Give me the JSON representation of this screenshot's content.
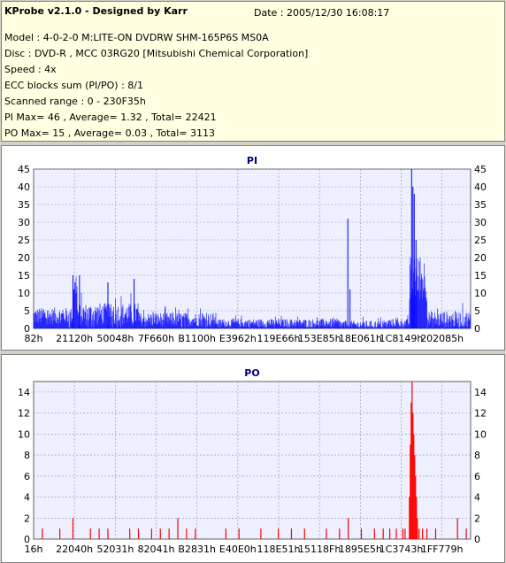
{
  "header": {
    "title": "KProbe v2.1.0 - Designed by Karr",
    "date": "Date : 2005/12/30 16:08:17",
    "model": "Model : 4-0-2-0 M:LITE-ON DVDRW SHM-165P6S MS0A",
    "disc": "Disc : DVD-R , MCC 03RG20  [Mitsubishi Chemical Corporation]",
    "speed": "Speed : 4x",
    "ecc": "ECC blocks sum (PI/PO) : 8/1",
    "range": "Scanned range : 0 - 230F35h",
    "pi_stats": "PI Max= 46 , Average= 1.32 , Total= 22421",
    "po_stats": "PO Max= 15 , Average= 0.03 , Total= 3113"
  },
  "colors": {
    "pi_bar": "#0000ff",
    "po_bar": "#ff0000",
    "plot_bg": "#eef0ff",
    "grid": "#9090a8",
    "info_bg": "#ffffe1",
    "title_text": "#000080"
  },
  "chart_data": [
    {
      "type": "bar",
      "title": "PI",
      "ylim": [
        0,
        45
      ],
      "yticks": [
        0,
        5,
        10,
        15,
        20,
        25,
        30,
        35,
        40,
        45
      ],
      "xticks": [
        "82h",
        "21120h",
        "50048h",
        "7F660h",
        "B1100h",
        "E3962h",
        "119E66h",
        "153E85h",
        "18E061h",
        "1C8149h",
        "202085h"
      ],
      "grid": true,
      "series": [
        {
          "color": "#0000ff",
          "segments": [
            {
              "from": 0.0,
              "to": 0.09,
              "base": 3.5,
              "spread": 3.0
            },
            {
              "from": 0.09,
              "to": 0.1,
              "base": 12.0,
              "spread": 3.0
            },
            {
              "from": 0.1,
              "to": 0.24,
              "base": 4.0,
              "spread": 4.0
            },
            {
              "from": 0.24,
              "to": 0.42,
              "base": 2.5,
              "spread": 2.5
            },
            {
              "from": 0.42,
              "to": 0.7,
              "base": 1.5,
              "spread": 1.5
            },
            {
              "from": 0.7,
              "to": 0.81,
              "base": 1.0,
              "spread": 1.5
            },
            {
              "from": 0.81,
              "to": 0.86,
              "base": 1.5,
              "spread": 1.5
            },
            {
              "from": 0.86,
              "to": 0.9,
              "base": 14.0,
              "spread": 8.0
            },
            {
              "from": 0.9,
              "to": 1.0,
              "base": 2.5,
              "spread": 3.0
            }
          ],
          "peaks": [
            {
              "x": 0.865,
              "value": 46
            },
            {
              "x": 0.868,
              "value": 40
            },
            {
              "x": 0.871,
              "value": 38
            },
            {
              "x": 0.875,
              "value": 25
            },
            {
              "x": 0.719,
              "value": 31
            },
            {
              "x": 0.724,
              "value": 11
            },
            {
              "x": 0.23,
              "value": 14
            },
            {
              "x": 0.17,
              "value": 13
            },
            {
              "x": 0.09,
              "value": 15
            },
            {
              "x": 0.105,
              "value": 15
            }
          ]
        }
      ]
    },
    {
      "type": "bar",
      "title": "PO",
      "ylim": [
        0,
        15
      ],
      "yticks": [
        0,
        2,
        4,
        6,
        8,
        10,
        12,
        14
      ],
      "xticks": [
        "16h",
        "22040h",
        "52031h",
        "82041h",
        "B2831h",
        "E40E0h",
        "118E51h",
        "15118Fh",
        "1895E5h",
        "1C3743h",
        "1FF779h"
      ],
      "grid": true,
      "series": [
        {
          "color": "#ff0000",
          "spikes": [
            {
              "x": 0.02,
              "value": 1
            },
            {
              "x": 0.06,
              "value": 1
            },
            {
              "x": 0.09,
              "value": 2
            },
            {
              "x": 0.13,
              "value": 1
            },
            {
              "x": 0.15,
              "value": 1
            },
            {
              "x": 0.17,
              "value": 1
            },
            {
              "x": 0.22,
              "value": 1
            },
            {
              "x": 0.24,
              "value": 1
            },
            {
              "x": 0.27,
              "value": 1
            },
            {
              "x": 0.29,
              "value": 1
            },
            {
              "x": 0.31,
              "value": 1
            },
            {
              "x": 0.33,
              "value": 2
            },
            {
              "x": 0.35,
              "value": 1
            },
            {
              "x": 0.37,
              "value": 1
            },
            {
              "x": 0.44,
              "value": 1
            },
            {
              "x": 0.47,
              "value": 1
            },
            {
              "x": 0.52,
              "value": 1
            },
            {
              "x": 0.56,
              "value": 1
            },
            {
              "x": 0.59,
              "value": 1
            },
            {
              "x": 0.62,
              "value": 1
            },
            {
              "x": 0.67,
              "value": 1
            },
            {
              "x": 0.7,
              "value": 1
            },
            {
              "x": 0.72,
              "value": 2
            },
            {
              "x": 0.75,
              "value": 1
            },
            {
              "x": 0.78,
              "value": 1
            },
            {
              "x": 0.8,
              "value": 1
            },
            {
              "x": 0.815,
              "value": 1
            },
            {
              "x": 0.83,
              "value": 1
            },
            {
              "x": 0.845,
              "value": 1
            },
            {
              "x": 0.85,
              "value": 1
            },
            {
              "x": 0.86,
              "value": 4
            },
            {
              "x": 0.862,
              "value": 9
            },
            {
              "x": 0.864,
              "value": 13
            },
            {
              "x": 0.866,
              "value": 15
            },
            {
              "x": 0.868,
              "value": 12
            },
            {
              "x": 0.87,
              "value": 10
            },
            {
              "x": 0.872,
              "value": 8
            },
            {
              "x": 0.874,
              "value": 6
            },
            {
              "x": 0.876,
              "value": 4
            },
            {
              "x": 0.878,
              "value": 2
            },
            {
              "x": 0.882,
              "value": 1
            },
            {
              "x": 0.89,
              "value": 1
            },
            {
              "x": 0.9,
              "value": 1
            },
            {
              "x": 0.92,
              "value": 1
            },
            {
              "x": 0.97,
              "value": 2
            },
            {
              "x": 0.99,
              "value": 1
            }
          ]
        }
      ]
    }
  ]
}
